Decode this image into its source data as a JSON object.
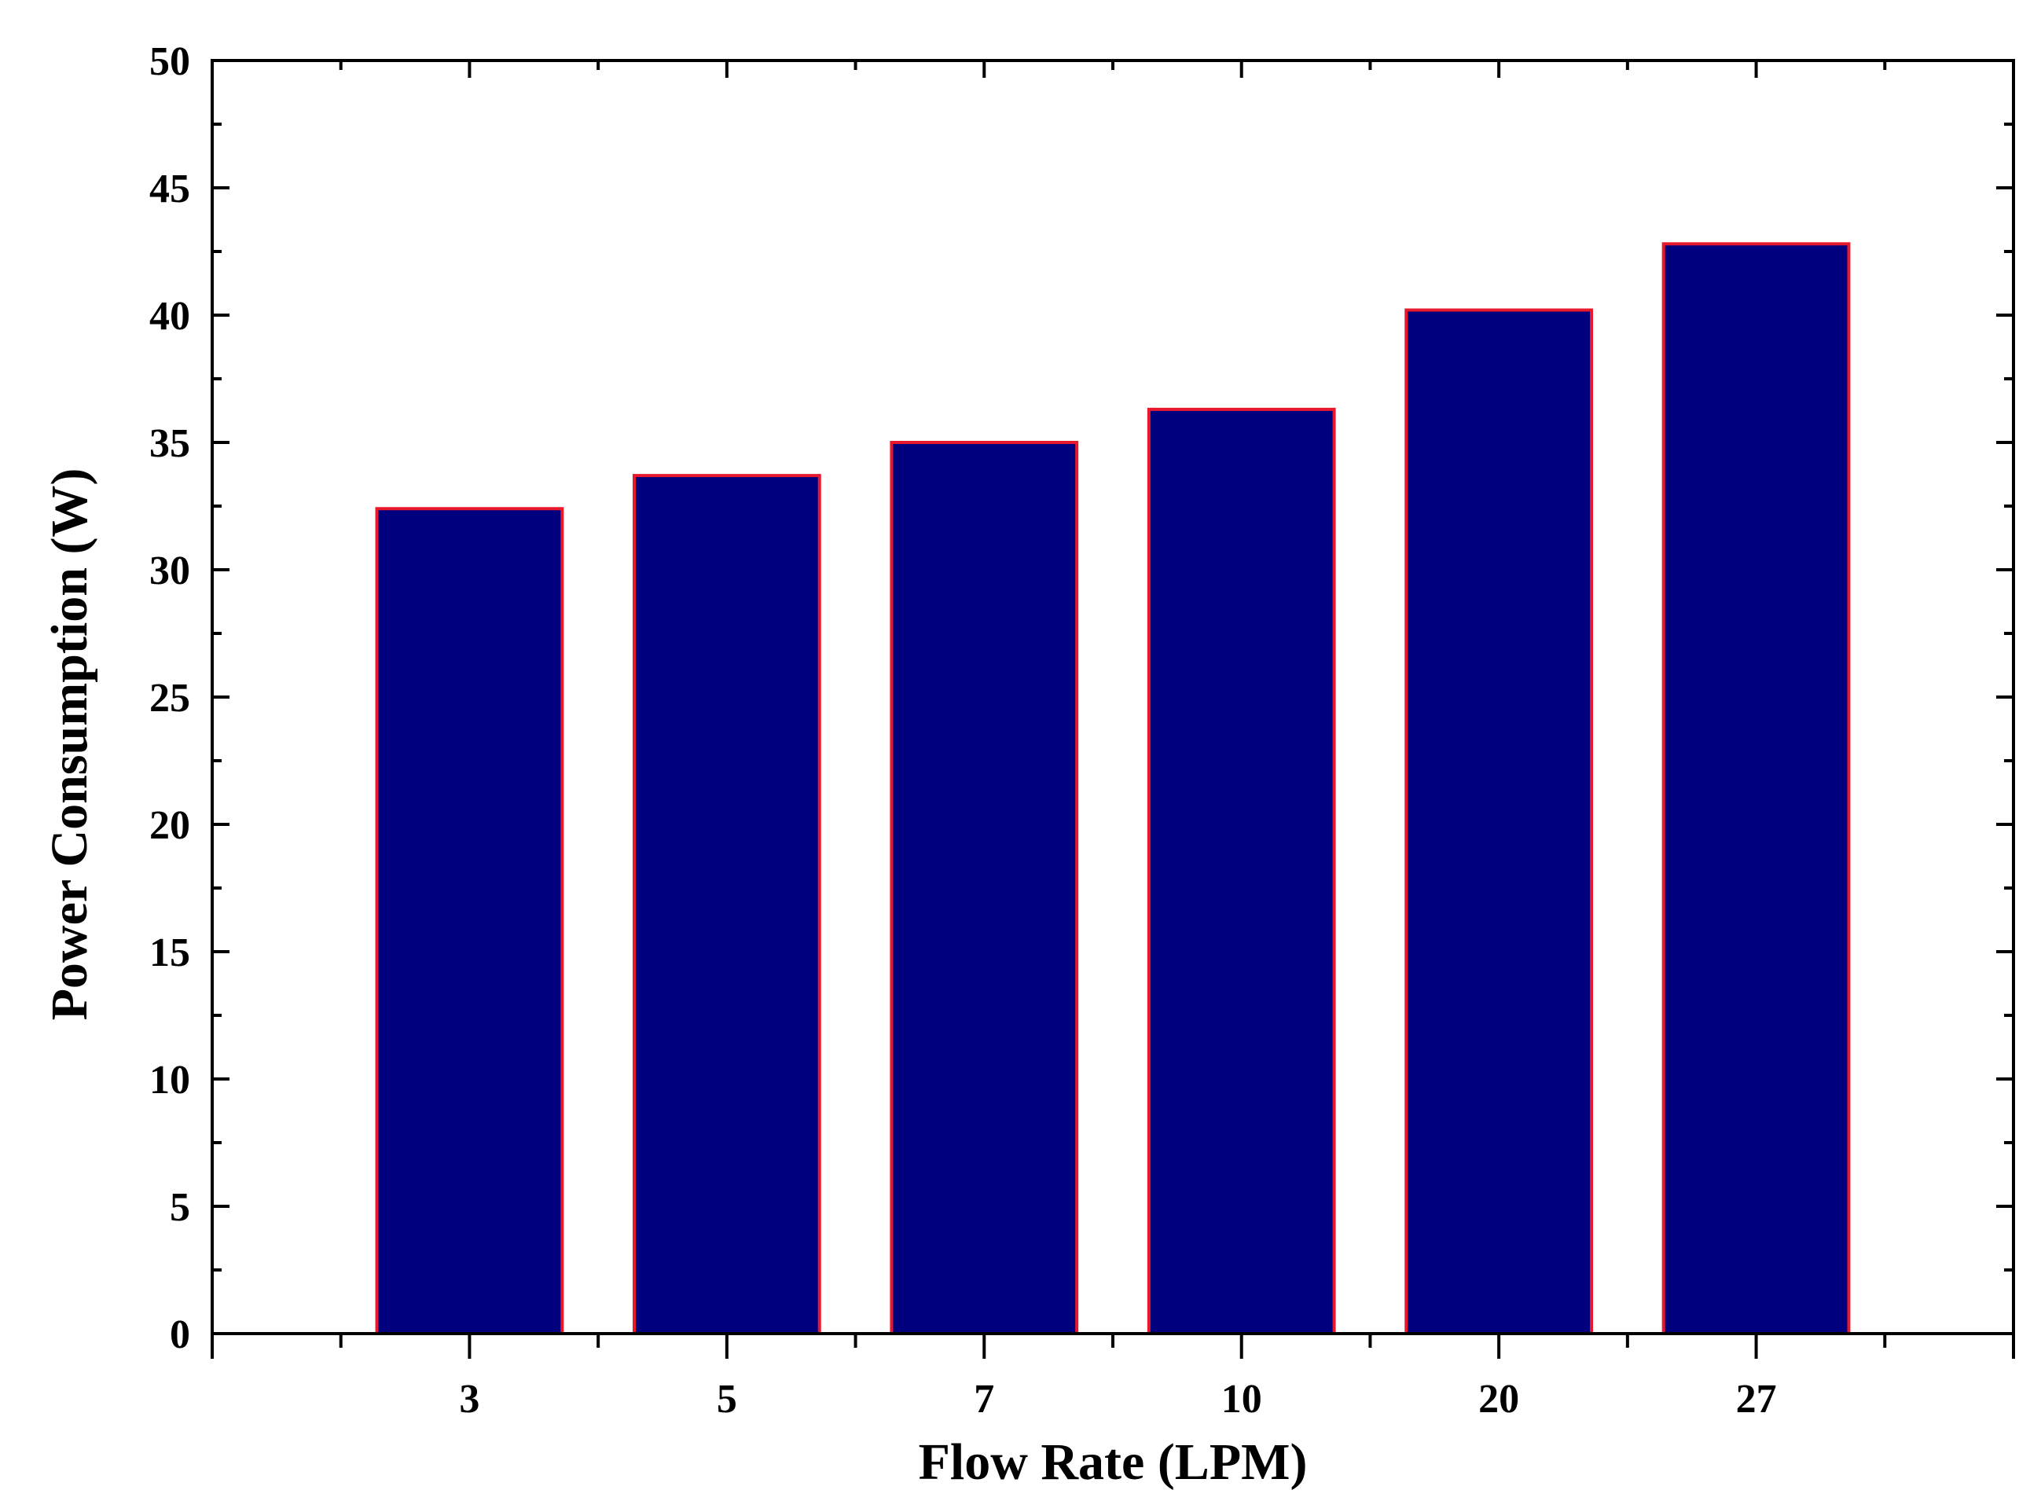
{
  "chart_data": {
    "type": "bar",
    "categories": [
      "3",
      "5",
      "7",
      "10",
      "20",
      "27"
    ],
    "series": [
      {
        "values": [
          32.4,
          33.7,
          35.0,
          36.3,
          40.2,
          42.8
        ]
      }
    ],
    "xlabel": "Flow Rate (LPM)",
    "ylabel": "Power Consumption (W)",
    "ylim": [
      0,
      50
    ],
    "yticks": [
      "0",
      "5",
      "10",
      "15",
      "20",
      "25",
      "30",
      "35",
      "40",
      "45",
      "50"
    ],
    "grid": false,
    "legend": "none",
    "colors": {
      "bar_fill": "#00007f",
      "bar_edge": "#e8192c",
      "axis": "#000000"
    }
  }
}
